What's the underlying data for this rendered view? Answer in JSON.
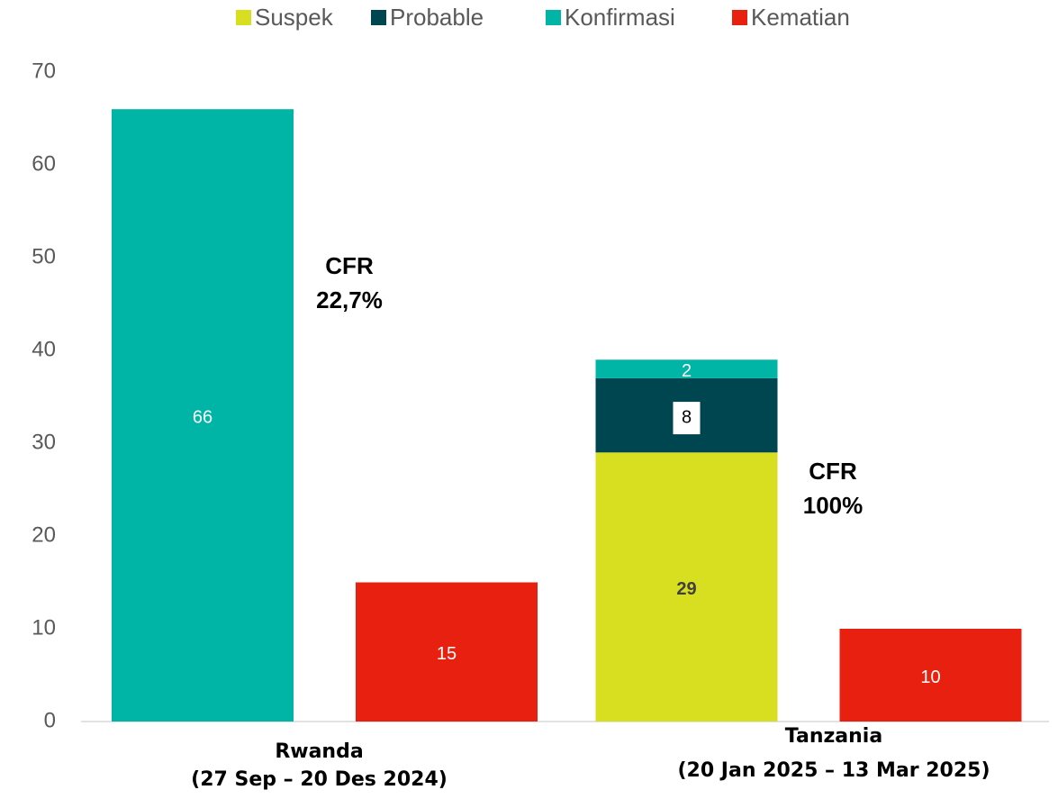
{
  "chart_data": {
    "type": "bar",
    "categories": [
      [
        "Rwanda",
        "(27 Sep – 20 Des 2024)"
      ],
      [
        "Tanzania",
        "(20 Jan 2025  – 13 Mar 2025)"
      ]
    ],
    "series": [
      {
        "name": "Suspek",
        "color": "#d8de20",
        "values": [
          null,
          29
        ],
        "bar_slot": 0
      },
      {
        "name": "Probable",
        "color": "#004650",
        "values": [
          null,
          8
        ],
        "bar_slot": 0
      },
      {
        "name": "Konfirmasi",
        "color": "#00b5a5",
        "values": [
          66,
          2
        ],
        "bar_slot": 0
      },
      {
        "name": "Kematian",
        "color": "#e8200f",
        "values": [
          15,
          10
        ],
        "bar_slot": 1
      }
    ],
    "annotations": [
      [
        "CFR",
        "22,7%"
      ],
      [
        "CFR",
        "100%"
      ]
    ],
    "ylim": [
      0,
      70
    ],
    "yticks": [
      0,
      10,
      20,
      30,
      40,
      50,
      60,
      70
    ],
    "grid": false,
    "legend": "top"
  }
}
